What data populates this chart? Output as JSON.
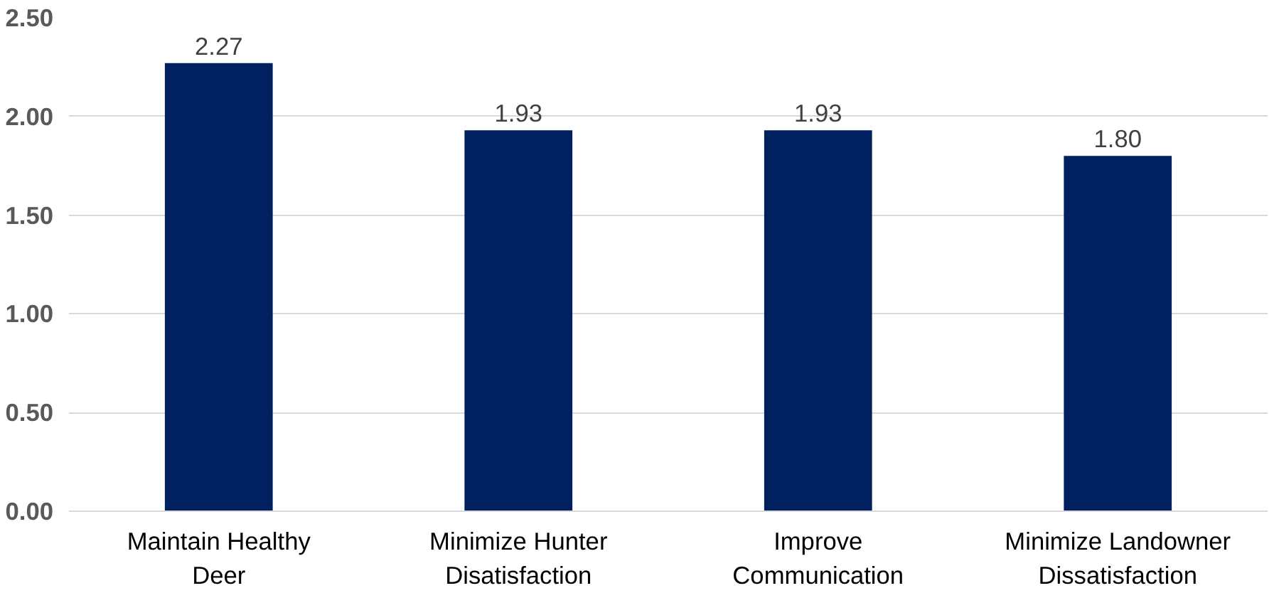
{
  "chart_data": {
    "type": "bar",
    "categories": [
      "Maintain Healthy Deer",
      "Minimize Hunter Disatisfaction",
      "Improve Communication",
      "Minimize Landowner Dissatisfaction"
    ],
    "values": [
      2.27,
      1.93,
      1.93,
      1.8
    ],
    "color": "#002060",
    "ylim": [
      0,
      2.5
    ],
    "yticks": [
      {
        "value": 0,
        "label": "0.00"
      },
      {
        "value": 0.5,
        "label": "0.50"
      },
      {
        "value": 1,
        "label": "1.00"
      },
      {
        "value": 1.5,
        "label": "1.50"
      },
      {
        "value": 2,
        "label": "2.00"
      },
      {
        "value": 2.5,
        "label": "2.50"
      }
    ],
    "grid": "y",
    "value_labels": [
      "2.27",
      "1.93",
      "1.93",
      "1.80"
    ]
  }
}
